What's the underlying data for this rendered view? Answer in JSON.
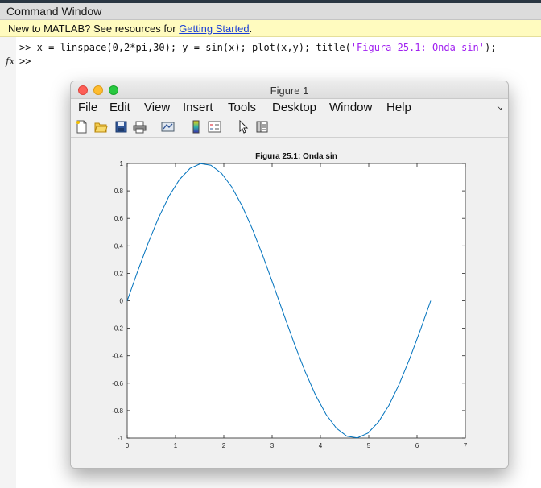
{
  "command_window": {
    "title": "Command Window",
    "banner_prefix": "New to MATLAB? See resources for ",
    "banner_link": "Getting Started",
    "banner_suffix": ".",
    "prompt": ">>",
    "command_part1": " x = linspace(0,2*pi,30); y = sin(x); plot(x,y); title(",
    "command_string": "'Figura 25.1: Onda sin'",
    "command_part2": ");",
    "fx_label": "fx",
    "empty_prompt": ">>"
  },
  "figure": {
    "window_title": "Figure 1",
    "menu": [
      "File",
      "Edit",
      "View",
      "Insert",
      "Tools",
      "Desktop",
      "Window",
      "Help"
    ],
    "toolbar_icons": [
      "new-figure-icon",
      "open-file-icon",
      "save-icon",
      "print-icon",
      "link-plot-icon",
      "colorbar-icon",
      "legend-icon",
      "pointer-icon",
      "property-inspector-icon"
    ]
  },
  "colors": {
    "line": "#0072bd",
    "axes_background": "#ffffff",
    "figure_background": "#f0f0f0",
    "string_literal": "#a020f0"
  },
  "chart_data": {
    "type": "line",
    "title": "Figura 25.1: Onda sin",
    "xlabel": "",
    "ylabel": "",
    "xlim": [
      0,
      7
    ],
    "ylim": [
      -1,
      1
    ],
    "xticks": [
      0,
      1,
      2,
      3,
      4,
      5,
      6,
      7
    ],
    "yticks": [
      -1,
      -0.8,
      -0.6,
      -0.4,
      -0.2,
      0,
      0.2,
      0.4,
      0.6,
      0.8,
      1
    ],
    "ytick_labels": [
      "-1",
      "-0.8",
      "-0.6",
      "-0.4",
      "-0.2",
      "0",
      "0.2",
      "0.4",
      "0.6",
      "0.8",
      "1"
    ],
    "grid": false,
    "series": [
      {
        "x": [
          0,
          0.2167,
          0.4333,
          0.65,
          0.8666,
          1.0833,
          1.3,
          1.5166,
          1.7333,
          1.95,
          2.1666,
          2.3833,
          2.6,
          2.8166,
          3.0333,
          3.25,
          3.4666,
          3.6833,
          3.9,
          4.1166,
          4.3333,
          4.55,
          4.7666,
          4.9833,
          5.2,
          5.4166,
          5.6333,
          5.85,
          6.0666,
          6.2832
        ],
        "y": [
          0,
          0.215,
          0.4199,
          0.6052,
          0.7622,
          0.8835,
          0.9635,
          0.9985,
          0.9868,
          0.929,
          0.8277,
          0.6877,
          0.5156,
          0.3193,
          0.1081,
          -0.1081,
          -0.3193,
          -0.5156,
          -0.6877,
          -0.8277,
          -0.929,
          -0.9868,
          -0.9985,
          -0.9635,
          -0.8835,
          -0.7622,
          -0.6052,
          -0.4199,
          -0.215,
          0
        ]
      }
    ]
  }
}
